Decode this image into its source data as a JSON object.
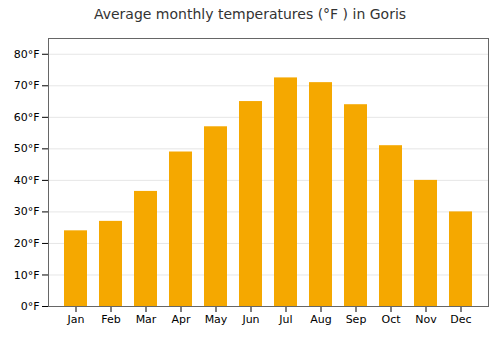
{
  "chart_data": {
    "type": "bar",
    "title": "Average monthly temperatures (°F ) in Goris",
    "categories": [
      "Jan",
      "Feb",
      "Mar",
      "Apr",
      "May",
      "Jun",
      "Jul",
      "Aug",
      "Sep",
      "Oct",
      "Nov",
      "Dec"
    ],
    "values": [
      24,
      27,
      36.5,
      49,
      57,
      65,
      72.5,
      71,
      64,
      51,
      40,
      30
    ],
    "color": "#F5A800",
    "ylim": [
      0,
      85
    ],
    "yticks": [
      {
        "value": 0,
        "label": "0°F"
      },
      {
        "value": 10,
        "label": "10°F"
      },
      {
        "value": 20,
        "label": "20°F"
      },
      {
        "value": 30,
        "label": "30°F"
      },
      {
        "value": 40,
        "label": "40°F"
      },
      {
        "value": 50,
        "label": "50°F"
      },
      {
        "value": 60,
        "label": "60°F"
      },
      {
        "value": 70,
        "label": "70°F"
      },
      {
        "value": 80,
        "label": "80°F"
      }
    ],
    "grid": true
  }
}
